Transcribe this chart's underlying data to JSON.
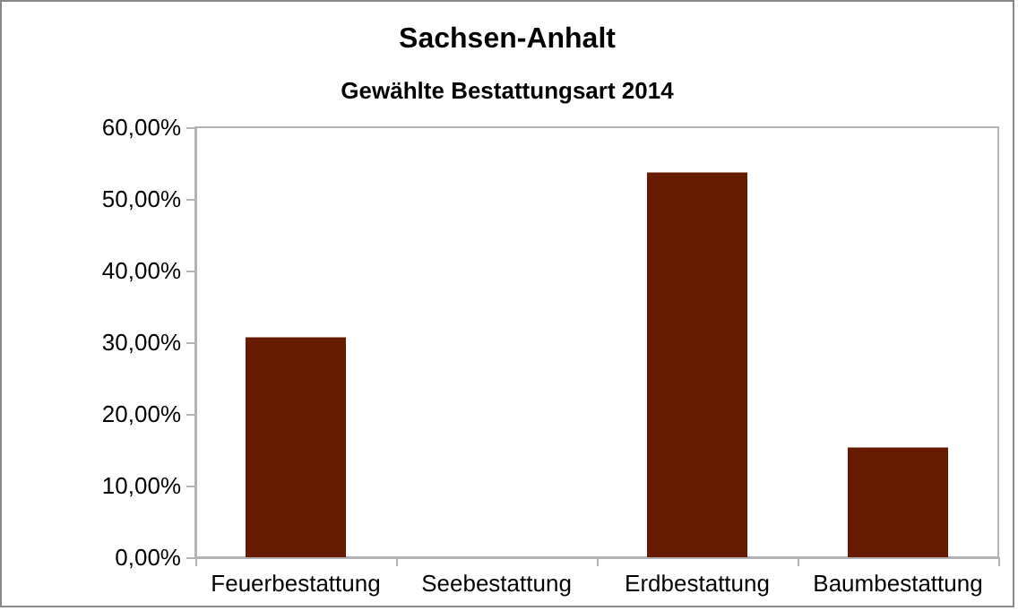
{
  "chart_data": {
    "type": "bar",
    "title": "Sachsen-Anhalt",
    "subtitle": "Gewählte Bestattungsart 2014",
    "categories": [
      "Feuerbestattung",
      "Seebestattung",
      "Erdbestattung",
      "Baumbestattung"
    ],
    "values": [
      30.7,
      0,
      53.7,
      15.3
    ],
    "color": "#661a00",
    "ylim": [
      0,
      60
    ],
    "yticks": [
      {
        "value": 0,
        "label": "0,00%"
      },
      {
        "value": 10,
        "label": "10,00%"
      },
      {
        "value": 20,
        "label": "20,00%"
      },
      {
        "value": 30,
        "label": "30,00%"
      },
      {
        "value": 40,
        "label": "40,00%"
      },
      {
        "value": 50,
        "label": "50,00%"
      },
      {
        "value": 60,
        "label": "60,00%"
      }
    ],
    "grid": false
  }
}
